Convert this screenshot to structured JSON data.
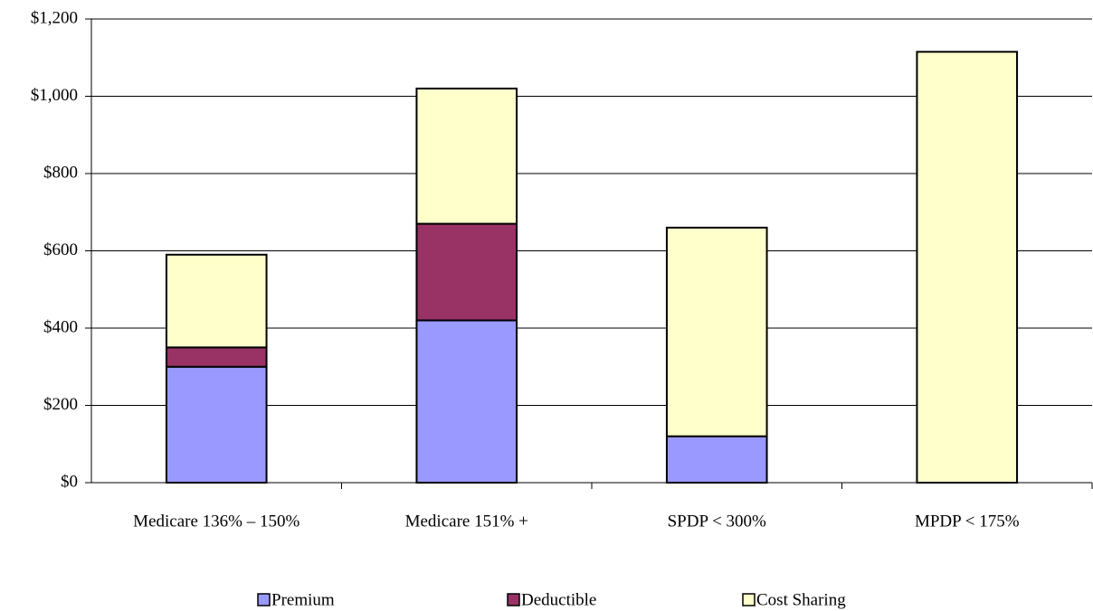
{
  "chart_data": {
    "type": "stacked_bar",
    "categories": [
      "Medicare 136% – 150%",
      "Medicare 151% +",
      "SPDP < 300%",
      "MPDP < 175%"
    ],
    "series": [
      {
        "name": "Premium",
        "color": "#9999ff",
        "values": [
          300,
          420,
          120,
          0
        ]
      },
      {
        "name": "Deductible",
        "color": "#993366",
        "values": [
          50,
          250,
          0,
          0
        ]
      },
      {
        "name": "Cost Sharing",
        "color": "#ffffcc",
        "values": [
          240,
          350,
          540,
          1115
        ]
      }
    ],
    "ylim": [
      0,
      1200
    ],
    "yticks": [
      {
        "value": 0,
        "label": "$0"
      },
      {
        "value": 200,
        "label": "$200"
      },
      {
        "value": 400,
        "label": "$400"
      },
      {
        "value": 600,
        "label": "$600"
      },
      {
        "value": 800,
        "label": "$800"
      },
      {
        "value": 1000,
        "label": "$1,000"
      },
      {
        "value": 1200,
        "label": "$1,200"
      }
    ],
    "grid": true,
    "legend": "bottom"
  }
}
